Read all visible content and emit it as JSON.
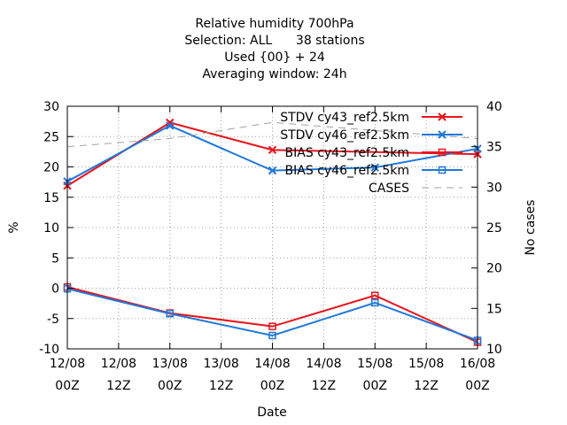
{
  "chart_data": {
    "type": "line",
    "title_lines": [
      "Relative humidity 700hPa",
      "Selection: ALL      38 stations",
      "Used {00} + 24",
      "Averaging window: 24h"
    ],
    "xlabel": "Date",
    "ylabel": "%",
    "y2label": "No cases",
    "x_ticks": [
      {
        "line1": "12/08",
        "line2": "00Z"
      },
      {
        "line1": "12/08",
        "line2": "12Z"
      },
      {
        "line1": "13/08",
        "line2": "00Z"
      },
      {
        "line1": "13/08",
        "line2": "12Z"
      },
      {
        "line1": "14/08",
        "line2": "00Z"
      },
      {
        "line1": "14/08",
        "line2": "12Z"
      },
      {
        "line1": "15/08",
        "line2": "00Z"
      },
      {
        "line1": "15/08",
        "line2": "12Z"
      },
      {
        "line1": "16/08",
        "line2": "00Z"
      }
    ],
    "ylim": [
      -10,
      30
    ],
    "y_ticks": [
      -10,
      -5,
      0,
      5,
      10,
      15,
      20,
      25,
      30
    ],
    "y2lim": [
      10,
      40
    ],
    "y2_ticks": [
      10,
      15,
      20,
      25,
      30,
      35,
      40
    ],
    "grid": true,
    "legend_position": "top-right",
    "series": [
      {
        "name": "STDV cy43_ref2.5km",
        "color": "#e8141c",
        "marker": "cross",
        "axis": "y1",
        "points": [
          [
            0,
            16.9
          ],
          [
            2,
            27.3
          ],
          [
            4,
            22.8
          ],
          [
            8,
            22.1
          ]
        ]
      },
      {
        "name": "STDV cy46_ref2.5km",
        "color": "#1f78d8",
        "marker": "cross",
        "axis": "y1",
        "points": [
          [
            0,
            17.6
          ],
          [
            2,
            26.8
          ],
          [
            4,
            19.4
          ],
          [
            6,
            19.9
          ],
          [
            8,
            23.0
          ]
        ]
      },
      {
        "name": "BIAS cy43_ref2.5km",
        "color": "#e8141c",
        "marker": "square",
        "axis": "y1",
        "points": [
          [
            0,
            0.2
          ],
          [
            2,
            -4.1
          ],
          [
            4,
            -6.3
          ],
          [
            6,
            -1.2
          ],
          [
            8,
            -8.9
          ]
        ]
      },
      {
        "name": "BIAS cy46_ref2.5km",
        "color": "#1f78d8",
        "marker": "square",
        "axis": "y1",
        "points": [
          [
            0,
            -0.1
          ],
          [
            2,
            -4.2
          ],
          [
            4,
            -7.8
          ],
          [
            6,
            -2.4
          ],
          [
            8,
            -8.6
          ]
        ]
      },
      {
        "name": "CASES",
        "color": "#a0a0a0",
        "marker": "none",
        "axis": "y2",
        "dashed": true,
        "points": [
          [
            0,
            35.0
          ],
          [
            2,
            36.0
          ],
          [
            4,
            38.0
          ],
          [
            6,
            37.0
          ],
          [
            8,
            36.0
          ]
        ]
      }
    ]
  }
}
